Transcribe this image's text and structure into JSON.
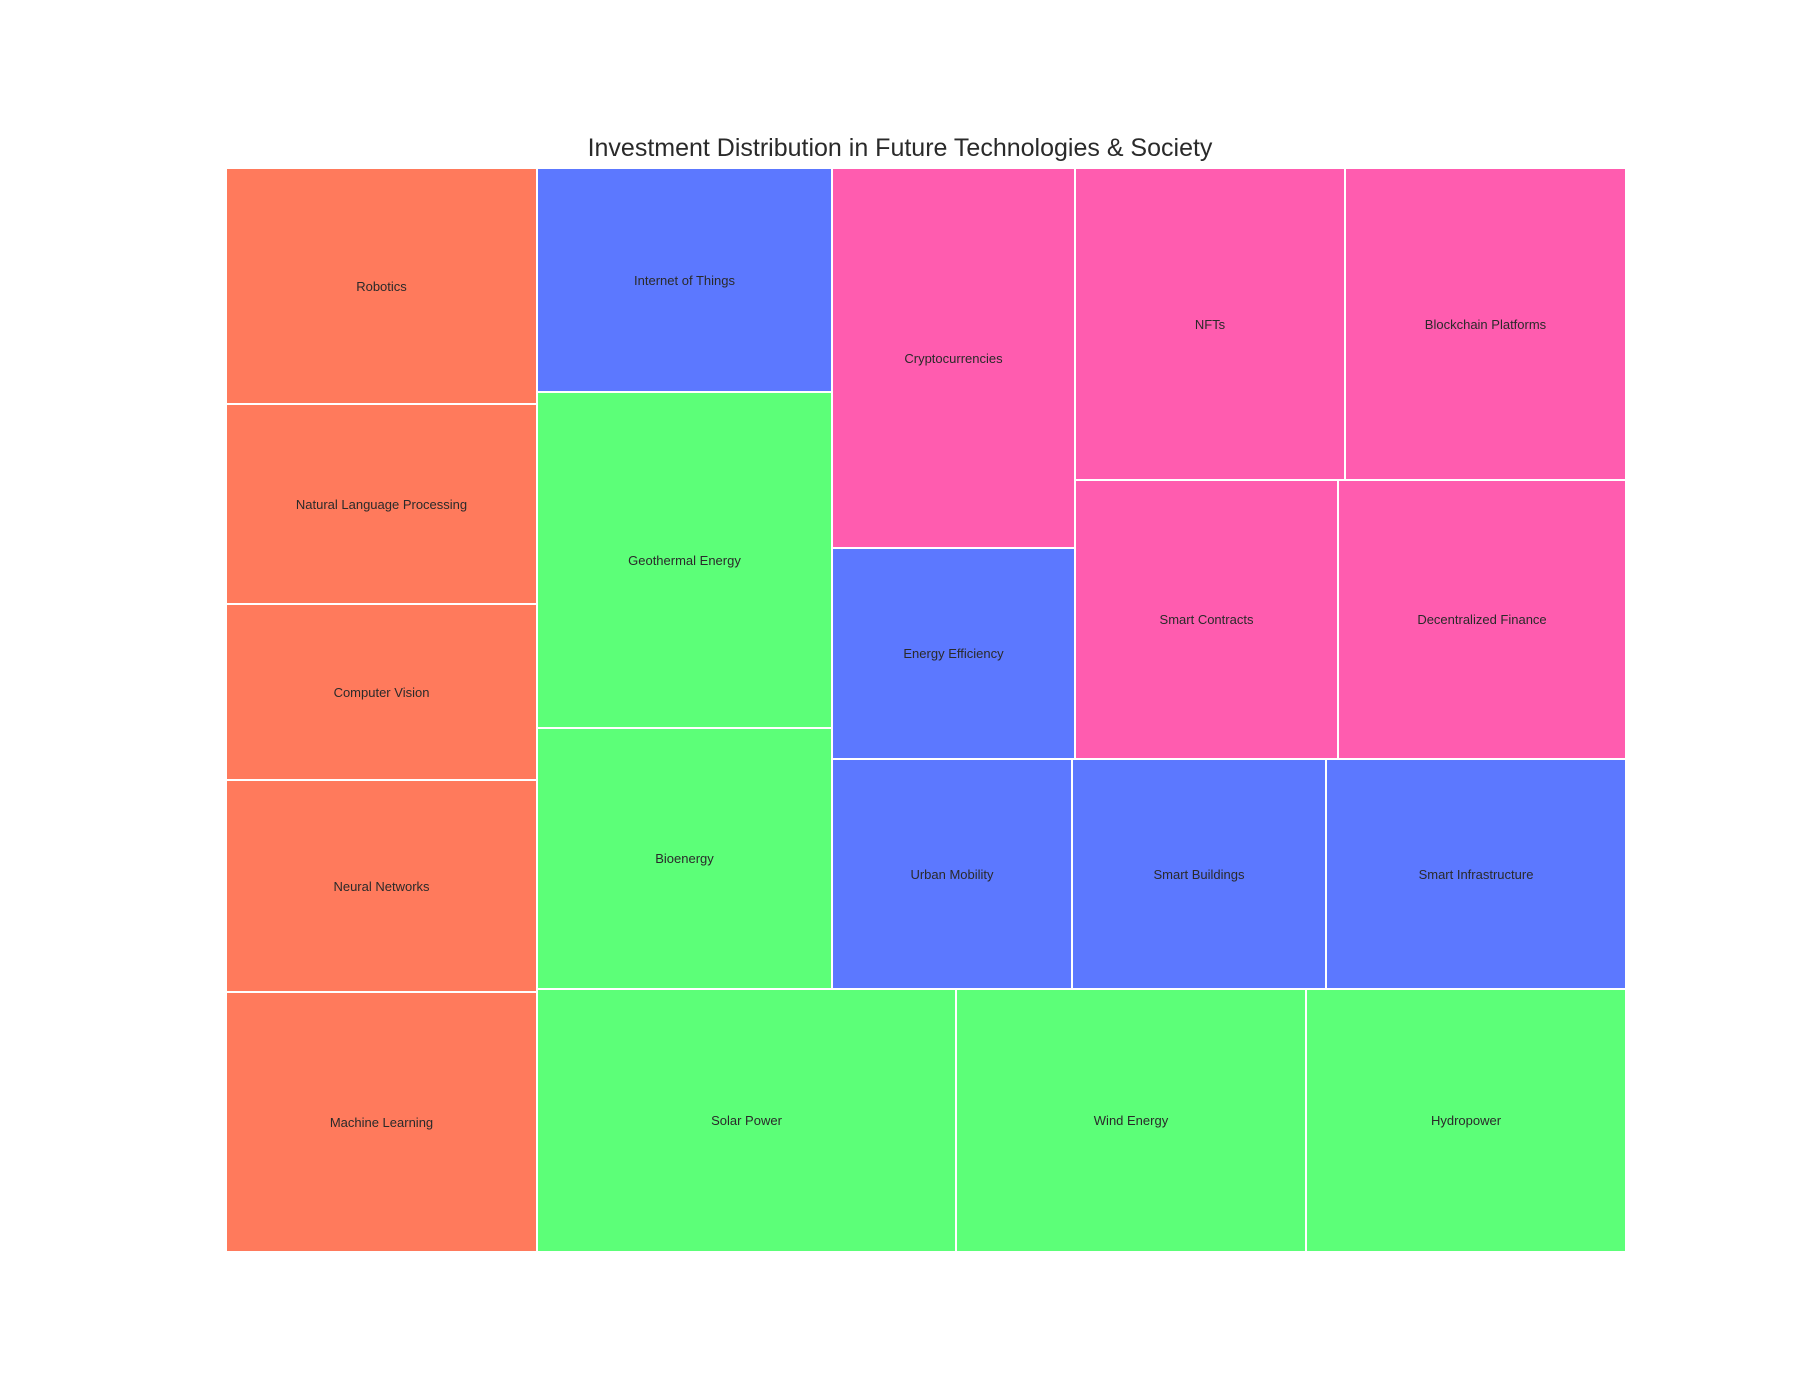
{
  "chart_data": {
    "type": "treemap",
    "title": "Investment Distribution in Future Technologies & Society",
    "colors": {
      "orange": "#ff7a5c",
      "blue": "#5c78ff",
      "green": "#5cff78",
      "pink": "#ff5caf"
    },
    "tiles": [
      {
        "label": "Robotics",
        "color": "orange"
      },
      {
        "label": "Natural Language Processing",
        "color": "orange"
      },
      {
        "label": "Computer Vision",
        "color": "orange"
      },
      {
        "label": "Neural Networks",
        "color": "orange"
      },
      {
        "label": "Machine Learning",
        "color": "orange"
      },
      {
        "label": "Internet of Things",
        "color": "blue"
      },
      {
        "label": "Geothermal Energy",
        "color": "green"
      },
      {
        "label": "Bioenergy",
        "color": "green"
      },
      {
        "label": "Cryptocurrencies",
        "color": "pink"
      },
      {
        "label": "NFTs",
        "color": "pink"
      },
      {
        "label": "Blockchain Platforms",
        "color": "pink"
      },
      {
        "label": "Energy Efficiency",
        "color": "blue"
      },
      {
        "label": "Smart Contracts",
        "color": "pink"
      },
      {
        "label": "Decentralized Finance",
        "color": "pink"
      },
      {
        "label": "Urban Mobility",
        "color": "blue"
      },
      {
        "label": "Smart Buildings",
        "color": "blue"
      },
      {
        "label": "Smart Infrastructure",
        "color": "blue"
      },
      {
        "label": "Solar Power",
        "color": "green"
      },
      {
        "label": "Wind Energy",
        "color": "green"
      },
      {
        "label": "Hydropower",
        "color": "green"
      }
    ]
  }
}
